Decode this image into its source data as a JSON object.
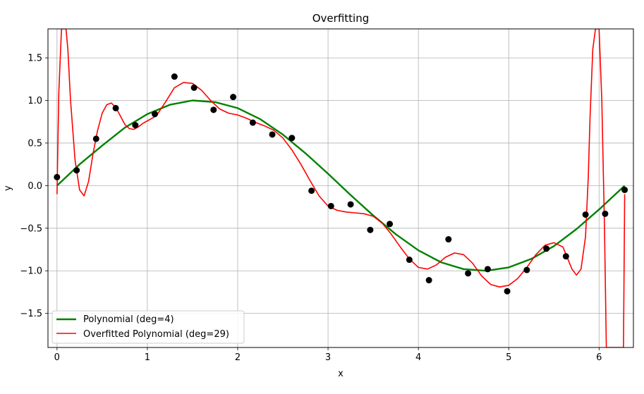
{
  "chart_data": {
    "type": "line",
    "title": "Overfitting",
    "xlabel": "x",
    "ylabel": "y",
    "xlim": [
      -0.1,
      6.38
    ],
    "ylim": [
      -1.9,
      1.84
    ],
    "grid": true,
    "legend_position": "lower-left",
    "xticks": [
      0,
      1,
      2,
      3,
      4,
      5,
      6
    ],
    "yticks": [
      -1.5,
      -1.0,
      -0.5,
      0.0,
      0.5,
      1.0,
      1.5
    ],
    "xtick_labels": [
      "0",
      "1",
      "2",
      "3",
      "4",
      "5",
      "6"
    ],
    "ytick_labels": [
      "−1.5",
      "−1.0",
      "−0.5",
      "0.0",
      "0.5",
      "1.0",
      "1.5"
    ],
    "points": {
      "color": "#000000",
      "x": [
        0.0,
        0.217,
        0.433,
        0.65,
        0.867,
        1.083,
        1.3,
        1.517,
        1.733,
        1.95,
        2.167,
        2.383,
        2.6,
        2.817,
        3.033,
        3.25,
        3.467,
        3.683,
        3.9,
        4.117,
        4.333,
        4.55,
        4.767,
        4.983,
        5.2,
        5.417,
        5.633,
        5.85,
        6.067,
        6.283
      ],
      "y": [
        0.1,
        0.18,
        0.55,
        0.91,
        0.71,
        0.84,
        1.28,
        1.15,
        0.89,
        1.04,
        0.74,
        0.6,
        0.56,
        -0.06,
        -0.24,
        -0.22,
        -0.52,
        -0.45,
        -0.87,
        -1.11,
        -0.63,
        -1.03,
        -0.98,
        -1.24,
        -0.99,
        -0.74,
        -0.83,
        -0.34,
        -0.33,
        -0.05
      ]
    },
    "series": [
      {
        "name": "Polynomial (deg=4)",
        "color": "#008000",
        "x": [
          0,
          0.25,
          0.5,
          0.75,
          1.0,
          1.25,
          1.5,
          1.75,
          2.0,
          2.25,
          2.5,
          2.75,
          3.0,
          3.25,
          3.5,
          3.75,
          4.0,
          4.25,
          4.5,
          4.75,
          5.0,
          5.25,
          5.5,
          5.75,
          6.0,
          6.283
        ],
        "y": [
          0.0,
          0.25,
          0.47,
          0.68,
          0.84,
          0.95,
          1.0,
          0.98,
          0.91,
          0.78,
          0.6,
          0.38,
          0.14,
          -0.11,
          -0.35,
          -0.57,
          -0.76,
          -0.9,
          -0.98,
          -1.0,
          -0.96,
          -0.86,
          -0.71,
          -0.51,
          -0.28,
          0.0
        ]
      },
      {
        "name": "Overfitted Polynomial (deg=29)",
        "color": "#ff0000",
        "x": [
          0,
          0.02,
          0.05,
          0.08,
          0.1,
          0.12,
          0.15,
          0.2,
          0.25,
          0.3,
          0.35,
          0.4,
          0.45,
          0.5,
          0.55,
          0.6,
          0.65,
          0.7,
          0.75,
          0.8,
          0.85,
          0.9,
          0.95,
          1.0,
          1.05,
          1.1,
          1.2,
          1.3,
          1.4,
          1.5,
          1.6,
          1.7,
          1.8,
          1.9,
          2.0,
          2.1,
          2.2,
          2.3,
          2.4,
          2.5,
          2.6,
          2.7,
          2.8,
          2.9,
          3.0,
          3.1,
          3.2,
          3.3,
          3.4,
          3.5,
          3.6,
          3.7,
          3.8,
          3.9,
          4.0,
          4.1,
          4.2,
          4.3,
          4.4,
          4.5,
          4.6,
          4.7,
          4.8,
          4.9,
          5.0,
          5.1,
          5.2,
          5.3,
          5.4,
          5.5,
          5.6,
          5.65,
          5.7,
          5.75,
          5.8,
          5.85,
          5.88,
          5.9,
          5.93,
          5.96,
          6.0,
          6.03,
          6.06,
          6.08,
          6.1,
          6.15,
          6.2,
          6.25,
          6.27,
          6.283
        ],
        "y": [
          -0.1,
          1.1,
          1.84,
          1.84,
          1.84,
          1.6,
          1.0,
          0.3,
          -0.05,
          -0.12,
          0.05,
          0.38,
          0.65,
          0.85,
          0.95,
          0.97,
          0.92,
          0.82,
          0.72,
          0.67,
          0.66,
          0.69,
          0.73,
          0.76,
          0.79,
          0.82,
          0.98,
          1.15,
          1.21,
          1.2,
          1.12,
          1.0,
          0.9,
          0.85,
          0.83,
          0.79,
          0.74,
          0.7,
          0.65,
          0.56,
          0.42,
          0.25,
          0.06,
          -0.12,
          -0.24,
          -0.29,
          -0.31,
          -0.32,
          -0.33,
          -0.36,
          -0.44,
          -0.57,
          -0.72,
          -0.86,
          -0.96,
          -0.98,
          -0.93,
          -0.84,
          -0.79,
          -0.81,
          -0.91,
          -1.06,
          -1.16,
          -1.19,
          -1.17,
          -1.09,
          -0.96,
          -0.81,
          -0.7,
          -0.67,
          -0.72,
          -0.85,
          -0.98,
          -1.05,
          -0.98,
          -0.6,
          0.1,
          0.8,
          1.6,
          1.84,
          1.84,
          1.0,
          -0.5,
          -1.9,
          -1.9,
          -1.9,
          -1.9,
          -1.9,
          -1.9,
          -0.1
        ]
      }
    ]
  }
}
